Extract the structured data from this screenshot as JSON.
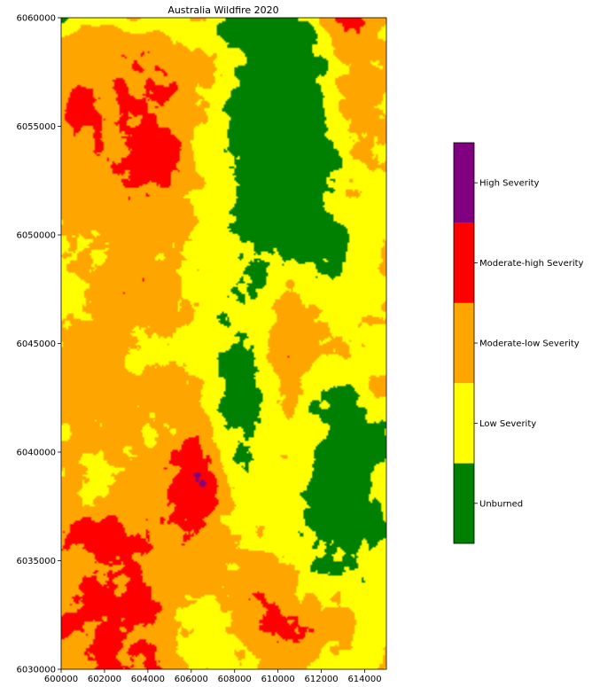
{
  "chart_data": {
    "type": "heatmap",
    "title": "Australia Wildfire 2020",
    "xlabel": "",
    "ylabel": "",
    "xlim": [
      600000,
      615000
    ],
    "ylim": [
      6030000,
      6060000
    ],
    "x_ticks": [
      "600000",
      "602000",
      "604000",
      "606000",
      "608000",
      "610000",
      "612000",
      "614000"
    ],
    "y_ticks": [
      "6030000",
      "6035000",
      "6040000",
      "6045000",
      "6050000",
      "6055000",
      "6060000"
    ],
    "categories": [
      {
        "label": "Unburned",
        "color": "#008000"
      },
      {
        "label": "Low Severity",
        "color": "#ffff00"
      },
      {
        "label": "Moderate-low Severity",
        "color": "#ffa500"
      },
      {
        "label": "Moderate-high Severity",
        "color": "#ff0000"
      },
      {
        "label": "High Severity",
        "color": "#800080"
      }
    ],
    "legend_position": "right"
  }
}
